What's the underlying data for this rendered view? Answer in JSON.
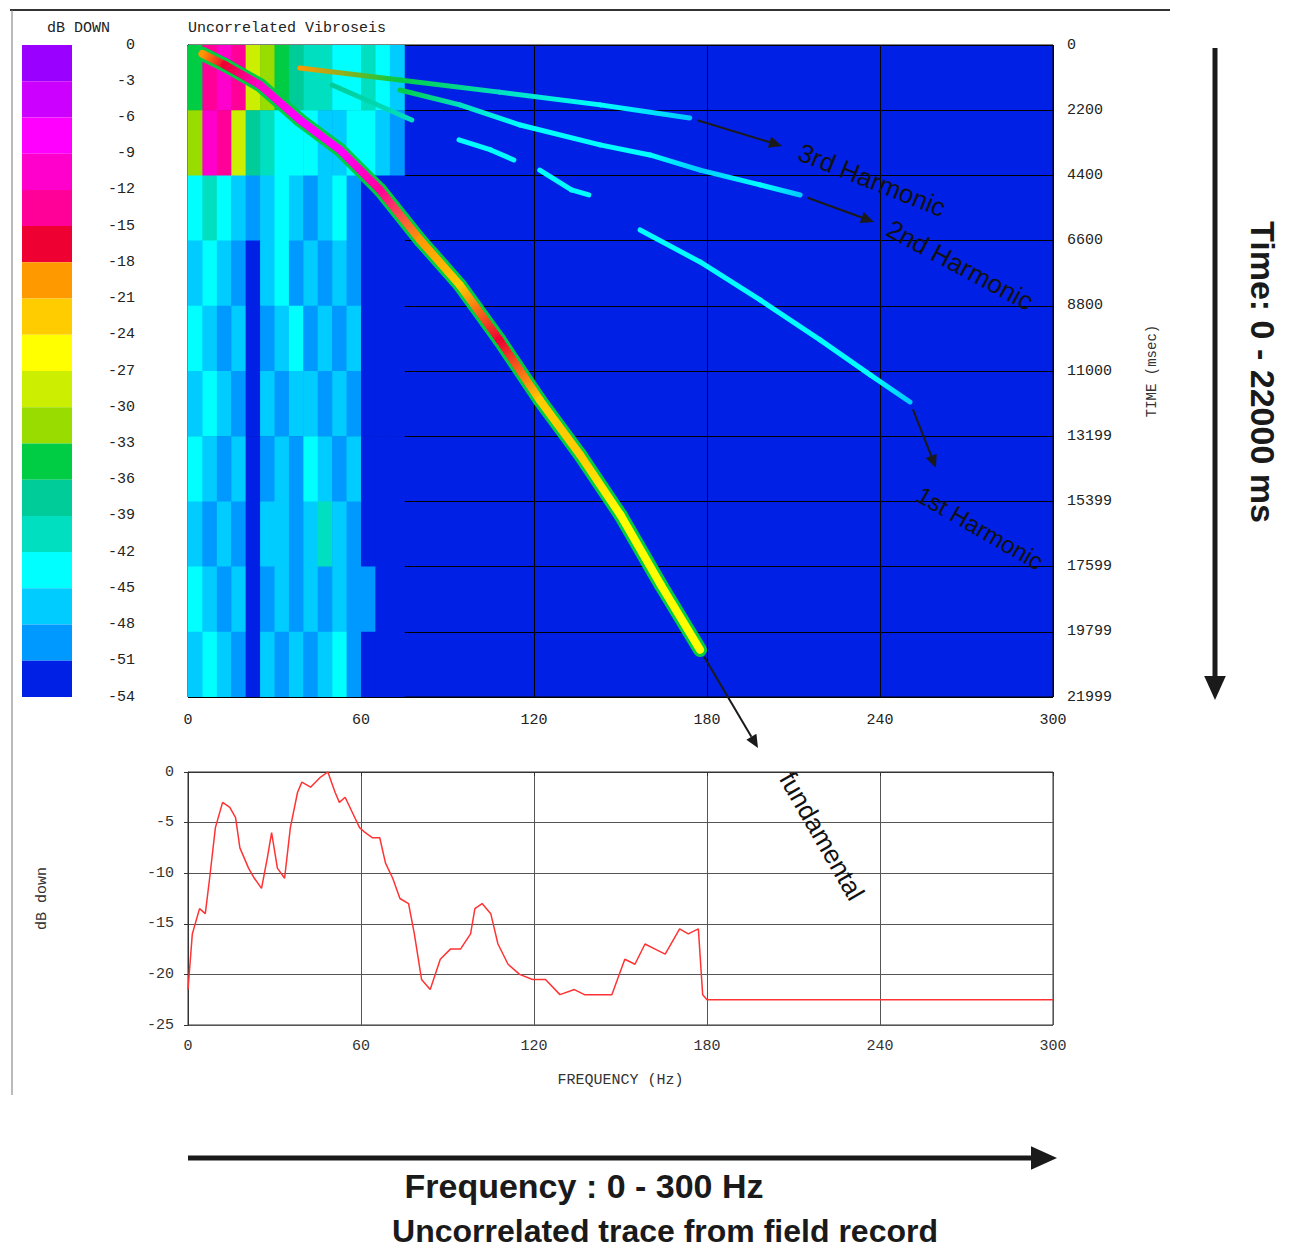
{
  "chart_data": [
    {
      "type": "heatmap",
      "title": "Uncorrelated Vibroseis",
      "xlim": [
        0,
        300
      ],
      "xticks": [
        0,
        60,
        120,
        180,
        240,
        300
      ],
      "ylim": [
        0,
        21999
      ],
      "yticks": [
        0,
        2200,
        4400,
        6600,
        8800,
        11000,
        13199,
        15399,
        17599,
        19799,
        21999
      ],
      "y_label": "TIME (msec)",
      "grid": true,
      "colorbar": {
        "title": "dB DOWN",
        "range": [
          -54,
          0
        ],
        "ticks": [
          0,
          -3,
          -6,
          -9,
          -12,
          -15,
          -18,
          -21,
          -24,
          -27,
          -30,
          -33,
          -36,
          -39,
          -42,
          -45,
          -48,
          -51,
          -54
        ],
        "colors": [
          "#9900ff",
          "#cc00ff",
          "#ff00ff",
          "#ff00cc",
          "#ff0099",
          "#ee0033",
          "#ff9900",
          "#ffcc00",
          "#ffff00",
          "#ccee00",
          "#99dd00",
          "#00cc44",
          "#00cc99",
          "#00e0c0",
          "#00ffff",
          "#00ccff",
          "#0099ff",
          "#0020e6"
        ]
      },
      "cells": {
        "f_edges": [
          0,
          5,
          10,
          15,
          20,
          25,
          30,
          35,
          40,
          45,
          50,
          55,
          60,
          65,
          70,
          75
        ],
        "t_edges": [
          0,
          2200,
          4400,
          6600,
          8800,
          11000,
          13199,
          15399,
          17599,
          19799,
          21999
        ],
        "values": [
          [
            -33,
            -12,
            -9,
            -12,
            -27,
            -30,
            -33,
            -36,
            -39,
            -39,
            -42,
            -42,
            -39,
            -42,
            -45
          ],
          [
            -30,
            -9,
            -12,
            -27,
            -36,
            -39,
            -42,
            -42,
            -42,
            -45,
            -45,
            -42,
            -42,
            -45,
            -48
          ],
          [
            -42,
            -39,
            -42,
            -45,
            -48,
            -45,
            -42,
            -45,
            -48,
            -45,
            -42,
            -48,
            -51,
            -51,
            -54
          ],
          [
            -45,
            -42,
            -45,
            -48,
            -51,
            -45,
            -42,
            -48,
            -45,
            -48,
            -45,
            -48,
            -51,
            -54,
            -54
          ],
          [
            -42,
            -45,
            -48,
            -45,
            -51,
            -48,
            -45,
            -42,
            -48,
            -45,
            -48,
            -45,
            -51,
            -51,
            -54
          ],
          [
            -45,
            -42,
            -45,
            -48,
            -51,
            -45,
            -48,
            -45,
            -45,
            -48,
            -45,
            -48,
            -51,
            -54,
            -54
          ],
          [
            -42,
            -45,
            -48,
            -45,
            -51,
            -48,
            -45,
            -48,
            -42,
            -45,
            -48,
            -45,
            -51,
            -51,
            -54
          ],
          [
            -45,
            -48,
            -45,
            -48,
            -51,
            -45,
            -45,
            -48,
            -45,
            -39,
            -45,
            -48,
            -51,
            -54,
            -54
          ],
          [
            -42,
            -45,
            -48,
            -45,
            -51,
            -48,
            -45,
            -48,
            -45,
            -48,
            -45,
            -48,
            -48,
            -51,
            -54
          ],
          [
            -45,
            -42,
            -45,
            -48,
            -51,
            -45,
            -48,
            -45,
            -48,
            -45,
            -42,
            -48,
            -51,
            -54,
            -54
          ]
        ]
      },
      "series": [
        {
          "name": "fundamental",
          "values": [
            [
              5,
              300,
              -18
            ],
            [
              12.8,
              675,
              -16.5
            ],
            [
              25,
              1350,
              -9
            ],
            [
              38.8,
              2530,
              -6
            ],
            [
              52.7,
              3540,
              -7.5
            ],
            [
              66.6,
              4890,
              -13.5
            ],
            [
              80.5,
              6580,
              -19.5
            ],
            [
              94.3,
              8100,
              -21
            ],
            [
              108,
              9950,
              -16.5
            ],
            [
              122,
              11980,
              -21
            ],
            [
              136,
              13830,
              -22.5
            ],
            [
              150,
              15860,
              -24
            ],
            [
              164,
              18220,
              -24
            ],
            [
              177.6,
              20410,
              -24
            ]
          ]
        },
        {
          "name": "1st Harmonic",
          "values": [
            [
              50,
              1350,
              -36
            ],
            [
              77.6,
              2530,
              -39
            ],
            null,
            [
              94,
              3200,
              -43.5
            ],
            [
              105,
              3540,
              -43.5
            ],
            [
              113,
              3880,
              -43.5
            ],
            null,
            [
              122,
              4220,
              -43.5
            ],
            [
              133,
              4890,
              -43.5
            ],
            [
              139,
              5060,
              -43.5
            ],
            null,
            [
              156.8,
              6240,
              -43.5
            ],
            [
              177.6,
              7320,
              -43.5
            ],
            [
              198.4,
              8600,
              -43.5
            ],
            [
              219.2,
              9950,
              -43.5
            ],
            [
              236.6,
              11130,
              -43.5
            ],
            [
              250.4,
              12045,
              -46.5
            ]
          ]
        },
        {
          "name": "2nd Harmonic",
          "values": [
            [
              73.5,
              1520,
              -33
            ],
            [
              94.3,
              2020,
              -39
            ],
            [
              115.2,
              2700,
              -43.5
            ],
            [
              142.9,
              3370,
              -43.5
            ],
            [
              160.2,
              3710,
              -43.5
            ],
            [
              177.6,
              4220,
              -46.5
            ],
            [
              198.4,
              4720,
              -43.5
            ],
            [
              212.3,
              5060,
              -46.5
            ]
          ]
        },
        {
          "name": "3rd Harmonic",
          "values": [
            [
              38.8,
              776,
              -18
            ],
            [
              73.5,
              1180,
              -33
            ],
            [
              108,
              1590,
              -40.5
            ],
            [
              143,
              2020,
              -43.5
            ],
            [
              174,
              2460,
              -46.5
            ]
          ]
        }
      ]
    },
    {
      "type": "line",
      "x_label": "FREQUENCY (Hz)",
      "y_label": "dB down",
      "xlim": [
        0,
        300
      ],
      "xticks": [
        0,
        60,
        120,
        180,
        240,
        300
      ],
      "ylim": [
        -25,
        0
      ],
      "yticks": [
        0,
        -5,
        -10,
        -15,
        -20,
        -25
      ],
      "grid": true,
      "color": "#ff3333",
      "x": [
        0,
        1.5,
        4,
        6,
        7.5,
        9.5,
        12,
        14.5,
        16.5,
        18,
        21,
        23,
        25.5,
        27.5,
        29,
        31,
        33.5,
        35.5,
        38,
        39.5,
        42.5,
        46,
        48.5,
        51,
        52.5,
        54.5,
        57,
        59.5,
        61.5,
        64,
        66.5,
        68.5,
        71,
        73.5,
        76.5,
        78.5,
        81,
        84,
        87.5,
        91,
        94.5,
        98,
        99.5,
        102,
        105,
        107.5,
        111,
        115,
        119.5,
        124,
        129,
        134,
        137.5,
        141,
        147,
        151.5,
        155,
        158.5,
        162,
        165.5,
        170.5,
        173.5,
        177,
        178.5,
        180,
        300
      ],
      "values": [
        -21.5,
        -16,
        -13.5,
        -14,
        -10.5,
        -5.5,
        -3,
        -3.5,
        -4.5,
        -7.5,
        -9.5,
        -10.5,
        -11.5,
        -8.5,
        -6,
        -9.5,
        -10.5,
        -5.5,
        -2,
        -1,
        -1.5,
        -0.5,
        0,
        -2,
        -3,
        -2.5,
        -4,
        -5.5,
        -6,
        -6.5,
        -6.5,
        -9,
        -10.5,
        -12.5,
        -13,
        -16,
        -20.5,
        -21.5,
        -18.5,
        -17.5,
        -17.5,
        -16,
        -13.5,
        -13,
        -14,
        -17,
        -19,
        -20,
        -20.5,
        -20.5,
        -22,
        -21.5,
        -22,
        -22,
        -22,
        -18.5,
        -19,
        -17,
        -17.5,
        -18,
        -15.5,
        -16,
        -15.5,
        -22,
        -22.5,
        -22.5
      ]
    }
  ],
  "annotations": {
    "time_arrow": "Time: 0 - 22000 ms",
    "frequency_arrow": "Frequency : 0 - 300 Hz",
    "caption": "Uncorrelated trace from field record"
  }
}
